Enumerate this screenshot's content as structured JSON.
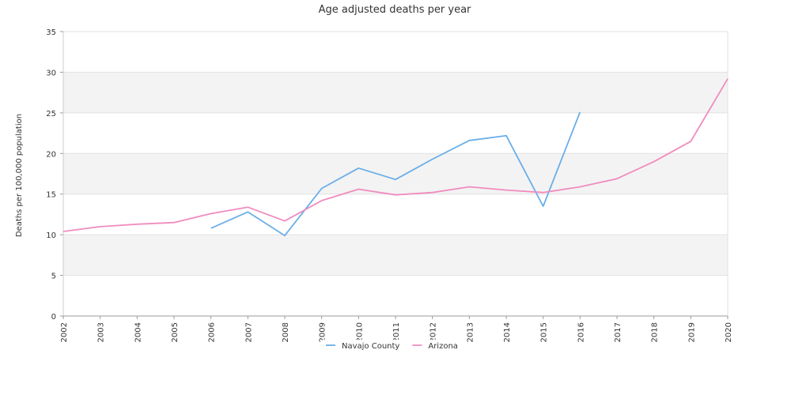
{
  "chart_data": {
    "type": "line",
    "title": "Age adjusted deaths per year",
    "xlabel": "",
    "ylabel": "Deaths per 100,000 population",
    "ylim": [
      0,
      35
    ],
    "yticks": [
      0,
      5,
      10,
      15,
      20,
      25,
      30,
      35
    ],
    "categories": [
      "2002",
      "2003",
      "2004",
      "2005",
      "2006",
      "2007",
      "2008",
      "2009",
      "2010",
      "2011",
      "2012",
      "2013",
      "2014",
      "2015",
      "2016",
      "2017",
      "2018",
      "2019",
      "2020"
    ],
    "grid": "horizontal bands",
    "legend_position": "bottom",
    "series": [
      {
        "name": "Navajo County",
        "color": "#6aaee8",
        "values": [
          null,
          null,
          null,
          null,
          10.8,
          12.8,
          9.9,
          15.7,
          18.2,
          16.8,
          19.3,
          21.6,
          22.2,
          13.5,
          25.1,
          null,
          null,
          null,
          null
        ]
      },
      {
        "name": "Arizona",
        "color": "#f08cbf",
        "values": [
          10.4,
          11.0,
          11.3,
          11.5,
          12.6,
          13.4,
          11.7,
          14.2,
          15.6,
          14.9,
          15.2,
          15.9,
          15.5,
          15.2,
          15.9,
          16.9,
          19.0,
          21.5,
          29.2
        ]
      }
    ]
  }
}
